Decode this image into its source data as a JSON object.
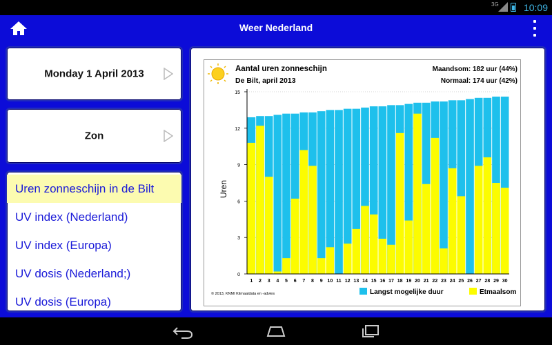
{
  "status": {
    "network": "3G",
    "time": "10:09"
  },
  "appbar": {
    "title": "Weer Nederland"
  },
  "date_card": {
    "label": "Monday 1 April 2013"
  },
  "category_card": {
    "label": "Zon"
  },
  "list": {
    "items": [
      {
        "label": "Uren zonneschijn in de Bilt",
        "selected": true
      },
      {
        "label": "UV index (Nederland)",
        "selected": false
      },
      {
        "label": "UV index (Europa)",
        "selected": false
      },
      {
        "label": "UV dosis (Nederland;)",
        "selected": false
      },
      {
        "label": "UV dosis (Europa)",
        "selected": false
      }
    ]
  },
  "colors": {
    "primary": "#0c0cd8",
    "selected_bg": "#fcfbb0",
    "link": "#1a1ad8",
    "max_color": "#1ec0ec",
    "actual_color": "#fcfc00"
  },
  "chart_data": {
    "type": "bar",
    "title": "Aantal uren zonneschijn",
    "subtitle": "De Bilt, april 2013",
    "stat_month": "Maandsom: 182 uur (44%)",
    "stat_normal": "Normaal: 174 uur (42%)",
    "ylabel": "Uren",
    "ylim": [
      0,
      15
    ],
    "yticks": [
      0,
      3,
      6,
      9,
      12,
      15
    ],
    "categories": [
      "1",
      "2",
      "3",
      "4",
      "5",
      "6",
      "7",
      "8",
      "9",
      "10",
      "11",
      "12",
      "13",
      "14",
      "15",
      "16",
      "17",
      "18",
      "19",
      "20",
      "21",
      "22",
      "23",
      "24",
      "25",
      "26",
      "27",
      "28",
      "29",
      "30"
    ],
    "series": [
      {
        "name": "Langst mogelijke duur",
        "color": "#1ec0ec",
        "values": [
          12.9,
          13.0,
          13.0,
          13.1,
          13.2,
          13.2,
          13.3,
          13.3,
          13.4,
          13.5,
          13.5,
          13.6,
          13.6,
          13.7,
          13.8,
          13.8,
          13.9,
          13.9,
          14.0,
          14.1,
          14.1,
          14.2,
          14.2,
          14.3,
          14.3,
          14.4,
          14.5,
          14.5,
          14.6,
          14.6
        ]
      },
      {
        "name": "Etmaalsom",
        "color": "#fcfc00",
        "values": [
          10.8,
          12.2,
          8.0,
          0.2,
          1.3,
          6.2,
          10.2,
          8.9,
          1.3,
          2.2,
          0.0,
          2.5,
          3.7,
          5.6,
          4.9,
          2.9,
          2.4,
          11.6,
          4.4,
          13.2,
          7.4,
          11.2,
          2.1,
          8.7,
          6.4,
          0.0,
          8.9,
          9.6,
          7.5,
          7.1
        ]
      }
    ],
    "legend_position": "bottom-right",
    "footnote": "© 2013, KNMI Klimaatdata en -advies"
  }
}
